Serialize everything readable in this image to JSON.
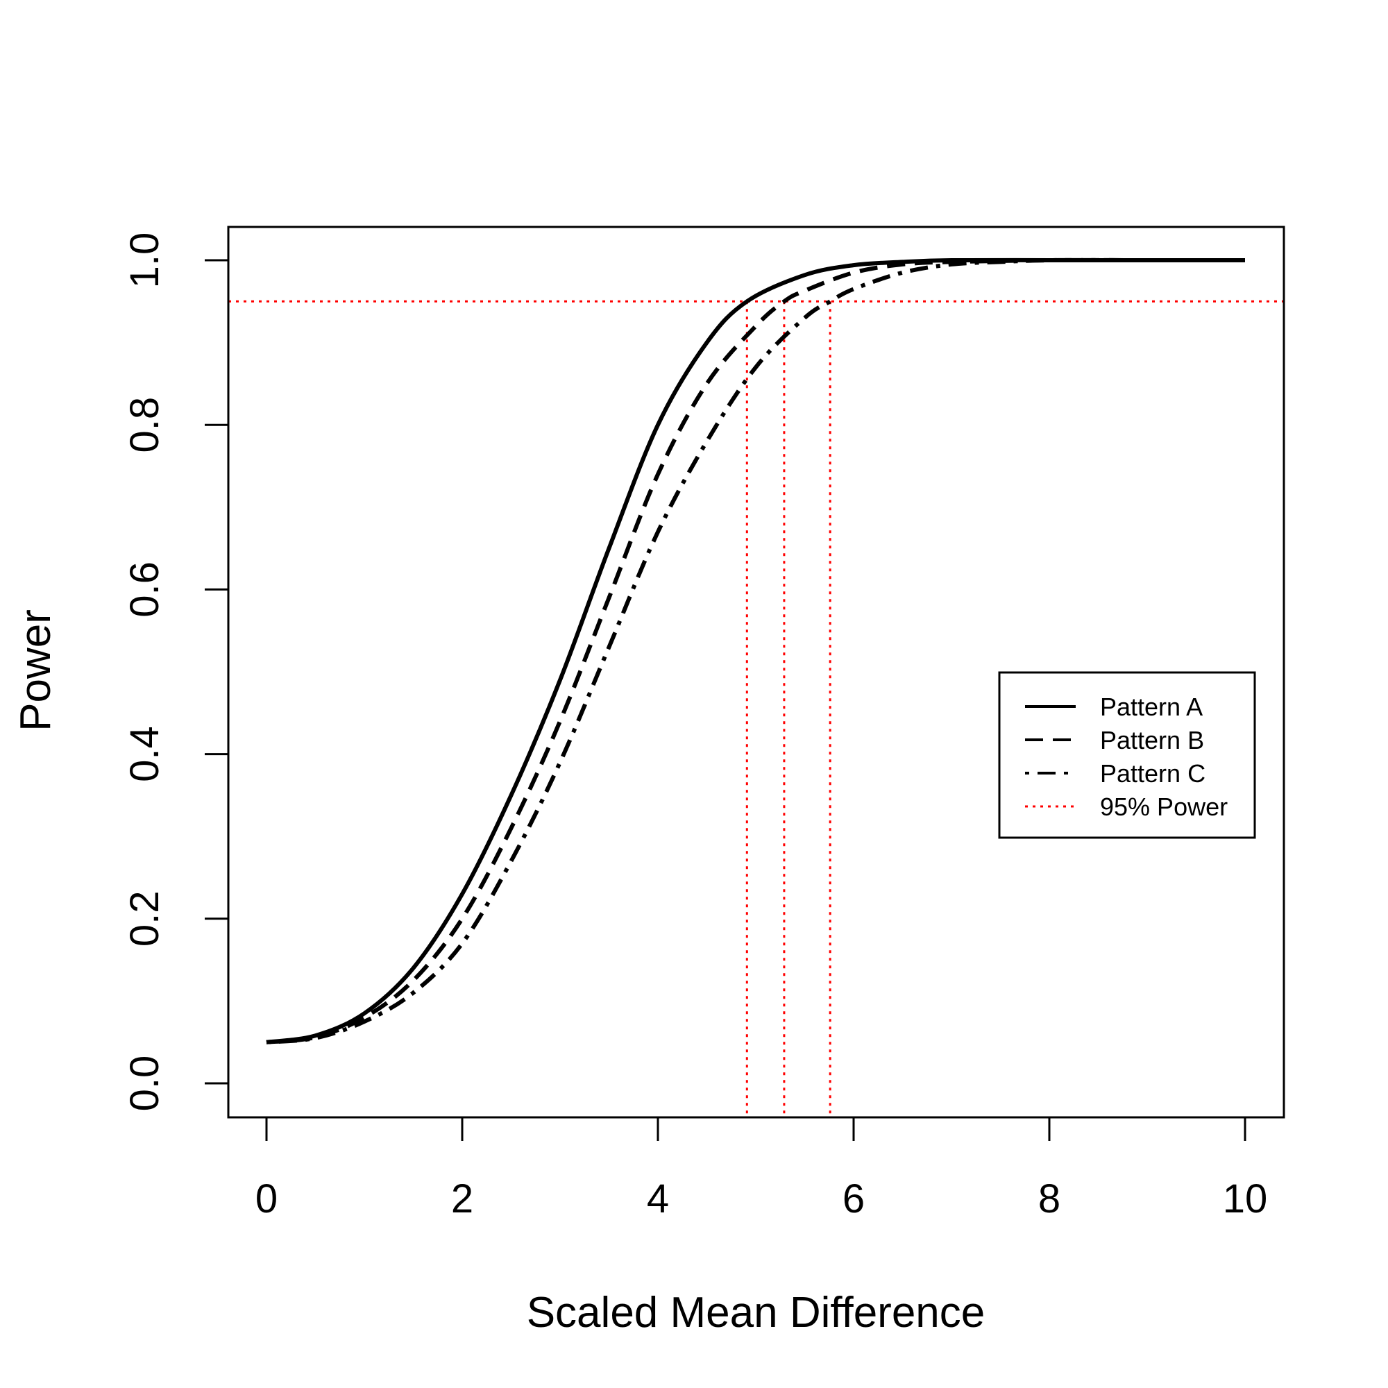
{
  "chart_data": {
    "type": "line",
    "title": "",
    "xlabel": "Scaled Mean Difference",
    "ylabel": "Power",
    "xlim": [
      0,
      10
    ],
    "ylim": [
      0,
      1
    ],
    "x_ticks": [
      "0",
      "2",
      "4",
      "6",
      "8",
      "10"
    ],
    "y_ticks": [
      "0.0",
      "0.2",
      "0.4",
      "0.6",
      "0.8",
      "1.0"
    ],
    "grid": false,
    "legend_position": "right",
    "series": [
      {
        "name": "Pattern A",
        "line_style": "solid",
        "color": "#000000",
        "x": [
          0,
          0.5,
          1,
          1.5,
          2,
          2.5,
          3,
          3.5,
          4,
          4.5,
          4.91,
          5.5,
          6,
          6.5,
          7,
          8,
          9,
          10
        ],
        "y": [
          0.05,
          0.058,
          0.085,
          0.14,
          0.23,
          0.35,
          0.49,
          0.65,
          0.8,
          0.9,
          0.95,
          0.982,
          0.994,
          0.998,
          1.0,
          1.0,
          1.0,
          1.0
        ]
      },
      {
        "name": "Pattern B",
        "line_style": "dashed",
        "color": "#000000",
        "x": [
          0,
          0.5,
          1,
          1.5,
          2,
          2.5,
          3,
          3.5,
          4,
          4.5,
          5,
          5.29,
          5.5,
          6,
          6.5,
          7,
          8,
          9,
          10
        ],
        "y": [
          0.05,
          0.056,
          0.08,
          0.125,
          0.2,
          0.31,
          0.44,
          0.59,
          0.74,
          0.85,
          0.92,
          0.95,
          0.963,
          0.985,
          0.995,
          0.998,
          1.0,
          1.0,
          1.0
        ]
      },
      {
        "name": "Pattern C",
        "line_style": "dotdash",
        "color": "#000000",
        "x": [
          0,
          0.5,
          1,
          1.5,
          2,
          2.5,
          3,
          3.5,
          4,
          4.5,
          5,
          5.5,
          5.76,
          6,
          6.5,
          7,
          7.5,
          8,
          9,
          10
        ],
        "y": [
          0.05,
          0.055,
          0.075,
          0.11,
          0.17,
          0.27,
          0.39,
          0.53,
          0.67,
          0.78,
          0.87,
          0.93,
          0.95,
          0.965,
          0.985,
          0.995,
          0.998,
          1.0,
          1.0,
          1.0
        ]
      }
    ],
    "reference": {
      "name": "95% Power",
      "color": "#ff0000",
      "line_style": "dotted",
      "y": 0.95,
      "x_crossings": [
        4.91,
        5.29,
        5.76
      ]
    }
  }
}
